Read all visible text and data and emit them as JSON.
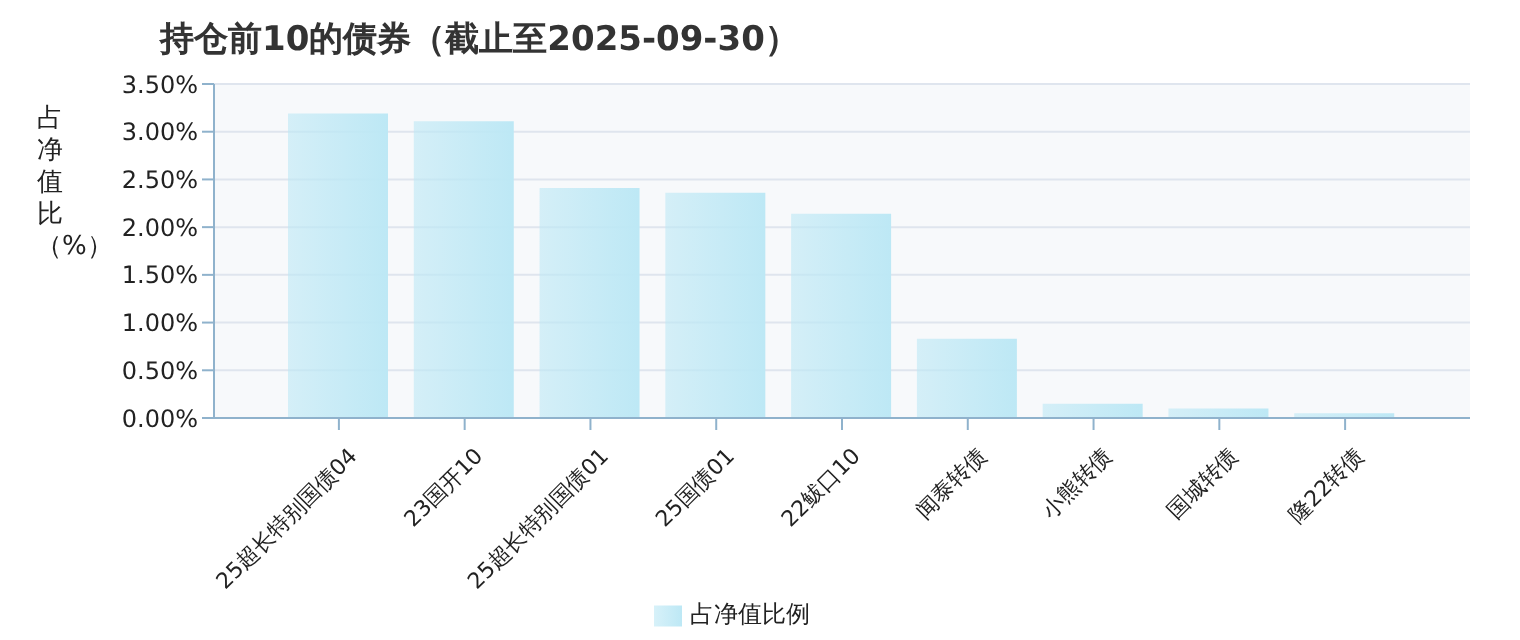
{
  "chart_data": {
    "type": "bar",
    "title": "持仓前10的债券（截止至2025-09-30）",
    "ylabel": "占净值比（%）",
    "categories": [
      "25超长特别国债04",
      "23国开10",
      "25超长特别国债01",
      "25国债01",
      "22鲅口10",
      "闻泰转债",
      "小熊转债",
      "国城转债",
      "隆22转债"
    ],
    "series": [
      {
        "name": "占净值比例",
        "color": "#bde8f5",
        "values": [
          3.19,
          3.11,
          2.41,
          2.36,
          2.14,
          0.83,
          0.15,
          0.1,
          0.05
        ]
      }
    ],
    "ylim": [
      0,
      3.5
    ],
    "yticks": [
      {
        "value": 0,
        "label": "0.00%"
      },
      {
        "value": 0.5,
        "label": "0.50%"
      },
      {
        "value": 1,
        "label": "1.00%"
      },
      {
        "value": 1.5,
        "label": "1.50%"
      },
      {
        "value": 2,
        "label": "2.00%"
      },
      {
        "value": 2.5,
        "label": "2.50%"
      },
      {
        "value": 3,
        "label": "3.00%"
      },
      {
        "value": 3.5,
        "label": "3.50%"
      }
    ],
    "grid": "y",
    "legend": "bottom"
  }
}
